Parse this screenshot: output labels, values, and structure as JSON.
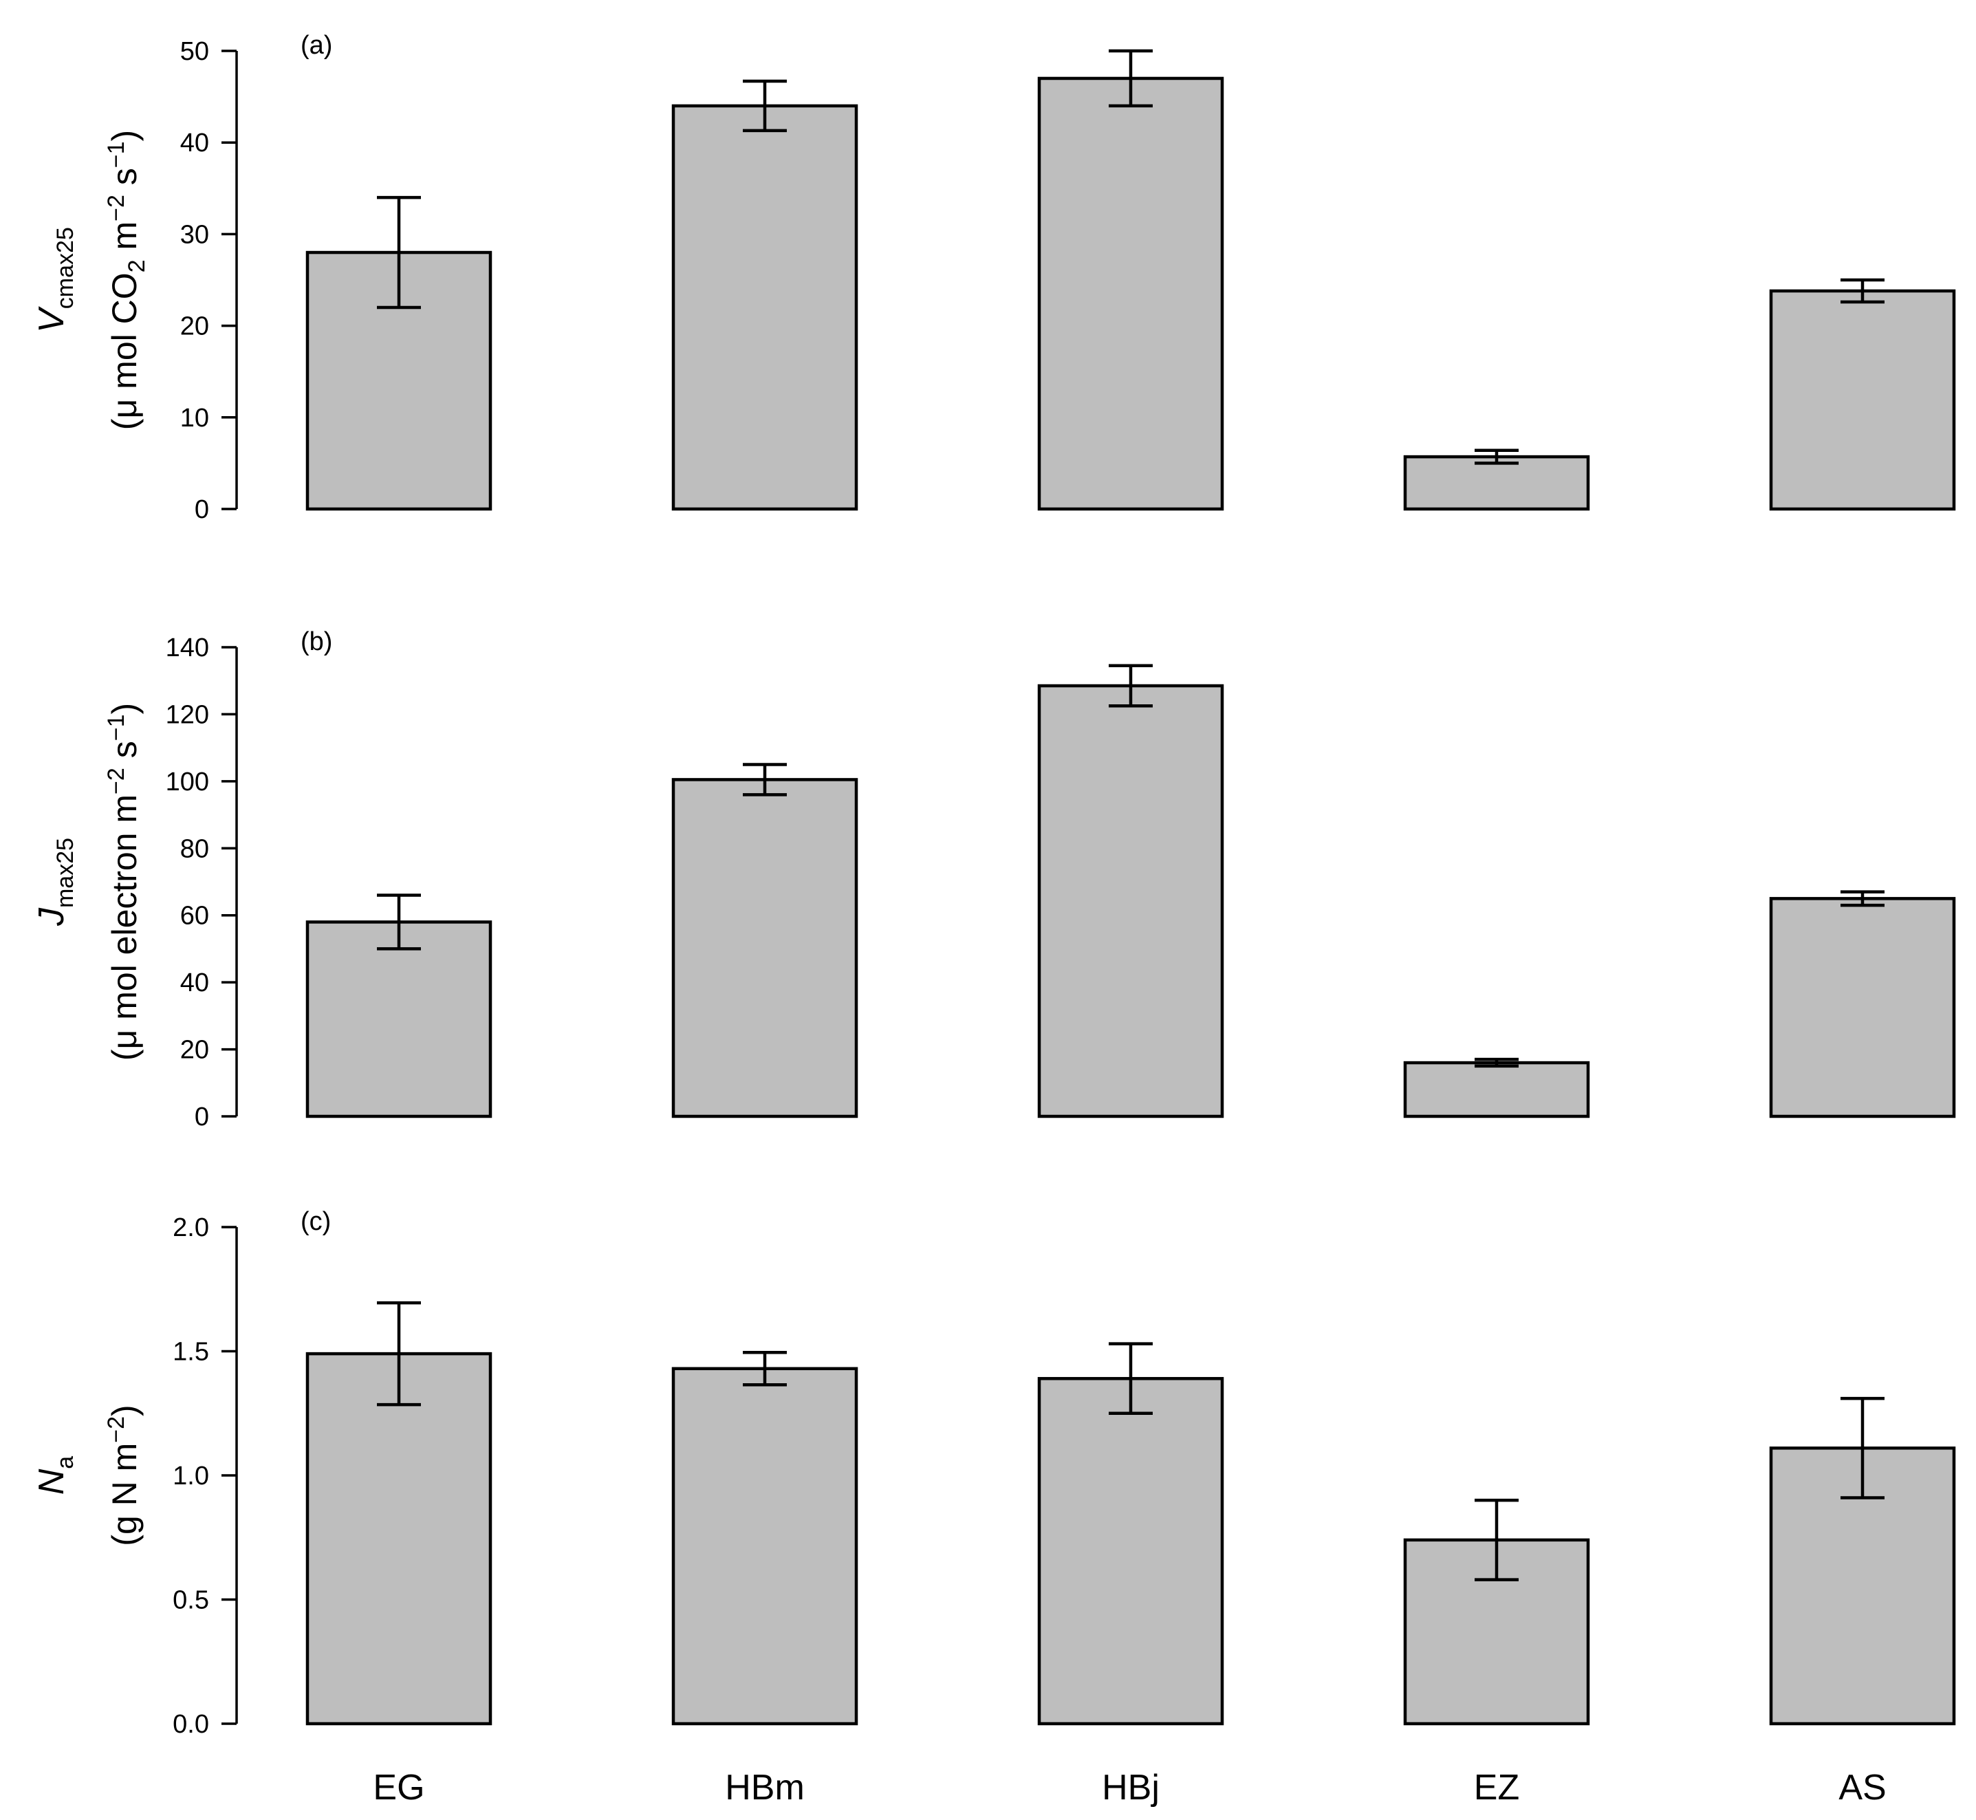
{
  "chart_data": [
    {
      "type": "bar",
      "panel_label": "(a)",
      "categories": [
        "EG",
        "HBm",
        "HBj",
        "EZ",
        "AS"
      ],
      "values": [
        28,
        44,
        47,
        5.7,
        23.8
      ],
      "errors": [
        6,
        2.7,
        3,
        0.7,
        1.2
      ],
      "ylim": [
        0,
        50
      ],
      "yticks": [
        0,
        10,
        20,
        30,
        40,
        50
      ],
      "ylabel": {
        "symbol": "V",
        "subscript": "cmax25",
        "unit_pre": "(μ mol CO",
        "unit_sub": "2",
        "unit_mid": " m",
        "unit_sup1": "−2",
        "unit_mid2": " s",
        "unit_sup2": "−1",
        "unit_post": ")"
      }
    },
    {
      "type": "bar",
      "panel_label": "(b)",
      "categories": [
        "EG",
        "HBm",
        "HBj",
        "EZ",
        "AS"
      ],
      "values": [
        58,
        100.5,
        128.5,
        16,
        65
      ],
      "errors": [
        8,
        4.5,
        6,
        1,
        2
      ],
      "ylim": [
        0,
        140
      ],
      "yticks": [
        0,
        20,
        40,
        60,
        80,
        100,
        120,
        140
      ],
      "ylabel": {
        "symbol": "J",
        "subscript": "max25",
        "unit_pre": "(μ mol electron m",
        "unit_sup1": "−2",
        "unit_mid": " s",
        "unit_sup2": "−1",
        "unit_post": ")"
      }
    },
    {
      "type": "bar",
      "panel_label": "(c)",
      "categories": [
        "EG",
        "HBm",
        "HBj",
        "EZ",
        "AS"
      ],
      "values": [
        1.49,
        1.43,
        1.39,
        0.74,
        1.11
      ],
      "errors": [
        0.205,
        0.065,
        0.14,
        0.16,
        0.2
      ],
      "ylim": [
        0,
        2.0
      ],
      "yticks": [
        "0.0",
        "0.5",
        "1.0",
        "1.5",
        "2.0"
      ],
      "ylabel": {
        "symbol": "N",
        "subscript": "a",
        "unit_pre": "(g N m",
        "unit_sup1": "−2",
        "unit_post": ")"
      }
    }
  ],
  "x_categories": [
    "EG",
    "HBm",
    "HBj",
    "EZ",
    "AS"
  ]
}
